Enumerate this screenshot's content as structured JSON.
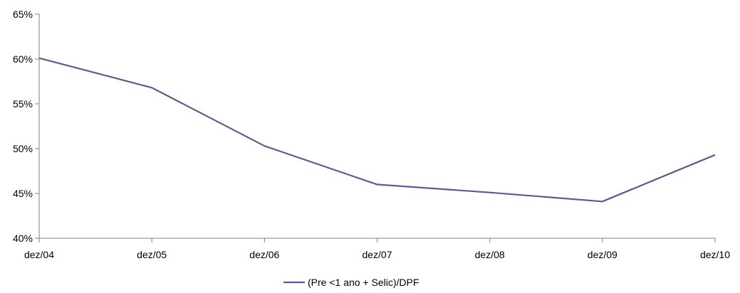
{
  "chart_data": {
    "type": "line",
    "title": "",
    "xlabel": "",
    "ylabel": "",
    "categories": [
      "dez/04",
      "dez/05",
      "dez/06",
      "dez/07",
      "dez/08",
      "dez/09",
      "dez/10"
    ],
    "y_ticks": [
      "40%",
      "45%",
      "50%",
      "55%",
      "60%",
      "65%"
    ],
    "ylim": [
      40,
      65
    ],
    "grid": false,
    "legend_position": "bottom",
    "series": [
      {
        "name": "(Pre <1 ano + Selic)/DPF",
        "color": "#5B5B8F",
        "values": [
          60.1,
          56.8,
          50.3,
          46.0,
          45.1,
          44.1,
          49.3
        ]
      }
    ]
  }
}
